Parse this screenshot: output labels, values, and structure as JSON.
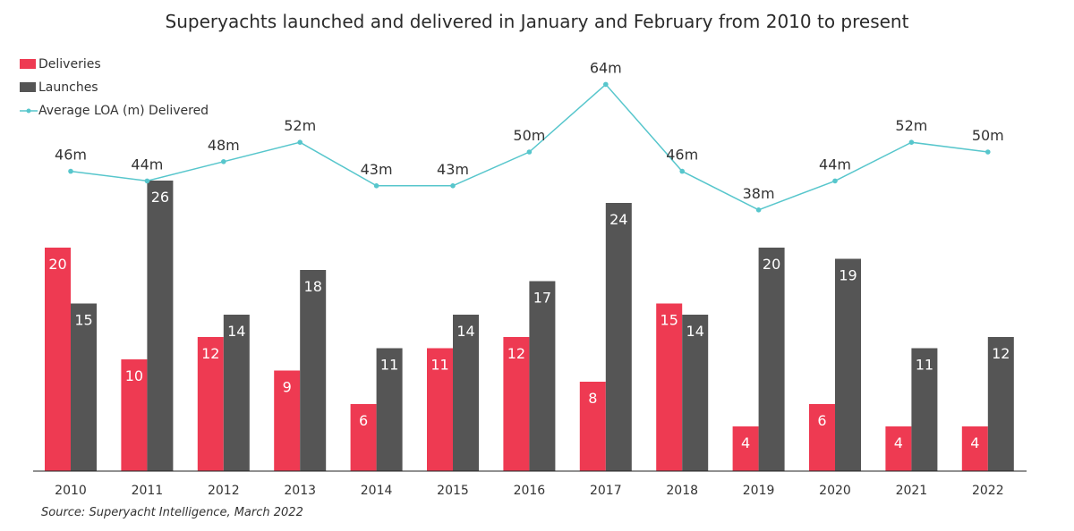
{
  "chart_data": {
    "type": "bar",
    "title": "Superyachts launched and delivered in January and February from 2010 to present",
    "categories": [
      "2010",
      "2011",
      "2012",
      "2013",
      "2014",
      "2015",
      "2016",
      "2017",
      "2018",
      "2019",
      "2020",
      "2021",
      "2022"
    ],
    "series": [
      {
        "name": "Deliveries",
        "type": "bar",
        "color": "#ee3a52",
        "values": [
          20,
          10,
          12,
          9,
          6,
          11,
          12,
          8,
          15,
          4,
          6,
          4,
          4
        ]
      },
      {
        "name": "Launches",
        "type": "bar",
        "color": "#555555",
        "values": [
          15,
          26,
          14,
          18,
          11,
          14,
          17,
          24,
          14,
          20,
          19,
          11,
          12
        ]
      },
      {
        "name": "Average LOA (m) Delivered",
        "type": "line",
        "color": "#57c6cc",
        "values": [
          46,
          44,
          48,
          52,
          43,
          43,
          50,
          64,
          46,
          38,
          44,
          52,
          50
        ],
        "labels": [
          "46m",
          "44m",
          "48m",
          "52m",
          "43m",
          "43m",
          "50m",
          "64m",
          "46m",
          "38m",
          "44m",
          "52m",
          "50m"
        ]
      }
    ],
    "ylim": [
      0,
      26
    ],
    "xlabel": "",
    "ylabel": "",
    "legend": "top-left"
  },
  "source": "Source: Superyacht Intelligence, March 2022"
}
